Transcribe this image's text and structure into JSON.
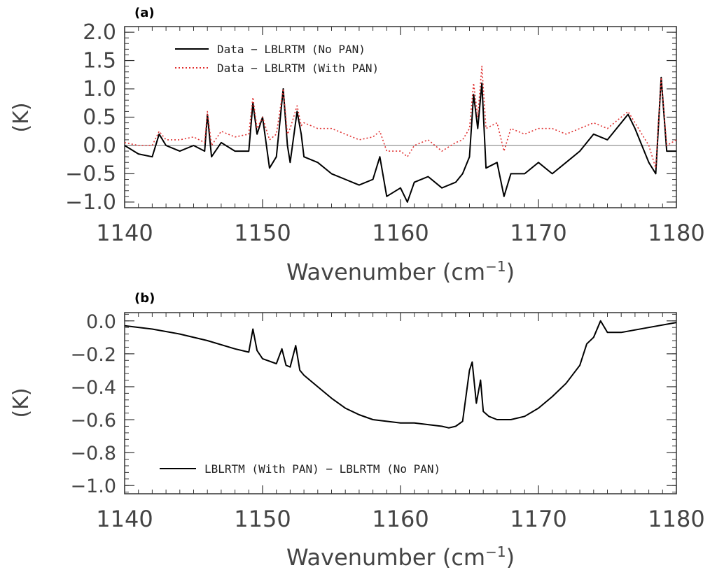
{
  "chart_data": [
    {
      "panel": "(a)",
      "type": "line",
      "xlabel": "Wavenumber (cm",
      "xlabel_sup": "−1",
      "xlabel_close": ")",
      "ylabel": "(K)",
      "xlim": [
        1140,
        1180
      ],
      "ylim": [
        -1.1,
        2.1
      ],
      "xticks": [
        1140,
        1150,
        1160,
        1170,
        1180
      ],
      "xtick_labels": [
        "1140",
        "1150",
        "1160",
        "1170",
        "1180"
      ],
      "yticks": [
        -1.0,
        -0.5,
        0.0,
        0.5,
        1.0,
        1.5,
        2.0
      ],
      "ytick_labels": [
        "−1.0",
        "−0.5",
        "0.0",
        "0.5",
        "1.0",
        "1.5",
        "2.0"
      ],
      "zero_line": true,
      "legend_position": "top-left",
      "series": [
        {
          "name": "Data − LBLRTM (No PAN)",
          "style": "solid",
          "color": "#000000",
          "x": [
            1140,
            1141,
            1142,
            1142.5,
            1143,
            1144,
            1145,
            1145.8,
            1146,
            1146.3,
            1147,
            1148,
            1149,
            1149.3,
            1149.6,
            1150,
            1150.5,
            1151,
            1151.5,
            1151.8,
            1152,
            1152.5,
            1152.8,
            1153,
            1154,
            1155,
            1156,
            1157,
            1158,
            1158.5,
            1159,
            1160,
            1160.5,
            1161,
            1162,
            1163,
            1164,
            1164.5,
            1165,
            1165.3,
            1165.6,
            1165.9,
            1166.2,
            1167,
            1167.5,
            1168,
            1169,
            1170,
            1171,
            1172,
            1173,
            1174,
            1175,
            1176,
            1176.5,
            1177,
            1178,
            1178.5,
            1178.9,
            1179.3,
            1180
          ],
          "y": [
            0.0,
            -0.15,
            -0.2,
            0.2,
            0.0,
            -0.1,
            0.0,
            -0.1,
            0.55,
            -0.2,
            0.05,
            -0.1,
            -0.1,
            0.75,
            0.2,
            0.5,
            -0.4,
            -0.2,
            1.0,
            0.0,
            -0.3,
            0.6,
            0.2,
            -0.2,
            -0.3,
            -0.5,
            -0.6,
            -0.7,
            -0.6,
            -0.2,
            -0.9,
            -0.75,
            -1.0,
            -0.65,
            -0.55,
            -0.75,
            -0.65,
            -0.5,
            -0.2,
            0.9,
            0.3,
            1.1,
            -0.4,
            -0.3,
            -0.9,
            -0.5,
            -0.5,
            -0.3,
            -0.5,
            -0.3,
            -0.1,
            0.2,
            0.1,
            0.4,
            0.55,
            0.3,
            -0.3,
            -0.5,
            1.2,
            -0.1,
            -0.1
          ]
        },
        {
          "name": "Data − LBLRTM (With PAN)",
          "style": "dotted",
          "color": "#e03030",
          "x": [
            1140,
            1141,
            1142,
            1142.5,
            1143,
            1144,
            1145,
            1145.8,
            1146,
            1146.3,
            1147,
            1148,
            1149,
            1149.3,
            1149.6,
            1150,
            1150.5,
            1151,
            1151.5,
            1151.8,
            1152,
            1152.5,
            1152.8,
            1153,
            1154,
            1155,
            1156,
            1157,
            1158,
            1158.5,
            1159,
            1160,
            1160.5,
            1161,
            1162,
            1163,
            1164,
            1164.5,
            1165,
            1165.3,
            1165.6,
            1165.9,
            1166.2,
            1167,
            1167.5,
            1168,
            1169,
            1170,
            1171,
            1172,
            1173,
            1174,
            1175,
            1176,
            1176.5,
            1177,
            1178,
            1178.5,
            1178.9,
            1179.3,
            1180
          ],
          "y": [
            0.05,
            0.0,
            0.0,
            0.25,
            0.1,
            0.1,
            0.15,
            0.05,
            0.6,
            0.0,
            0.25,
            0.15,
            0.2,
            0.85,
            0.3,
            0.5,
            0.1,
            0.2,
            1.0,
            0.2,
            0.3,
            0.7,
            0.35,
            0.4,
            0.3,
            0.3,
            0.2,
            0.1,
            0.15,
            0.25,
            -0.1,
            -0.1,
            -0.2,
            0.0,
            0.1,
            -0.1,
            0.05,
            0.1,
            0.3,
            1.1,
            0.5,
            1.4,
            0.3,
            0.4,
            -0.1,
            0.3,
            0.2,
            0.3,
            0.3,
            0.2,
            0.3,
            0.4,
            0.3,
            0.5,
            0.6,
            0.4,
            0.0,
            -0.4,
            1.2,
            0.0,
            0.1
          ]
        }
      ]
    },
    {
      "panel": "(b)",
      "type": "line",
      "xlabel": "Wavenumber (cm",
      "xlabel_sup": "−1",
      "xlabel_close": ")",
      "ylabel": "(K)",
      "xlim": [
        1140,
        1180
      ],
      "ylim": [
        -1.05,
        0.05
      ],
      "xticks": [
        1140,
        1150,
        1160,
        1170,
        1180
      ],
      "xtick_labels": [
        "1140",
        "1150",
        "1160",
        "1170",
        "1180"
      ],
      "yticks": [
        -1.0,
        -0.8,
        -0.6,
        -0.4,
        -0.2,
        0.0
      ],
      "ytick_labels": [
        "−1.0",
        "−0.8",
        "−0.6",
        "−0.4",
        "−0.2",
        "0.0"
      ],
      "legend_position": "bottom-left",
      "series": [
        {
          "name": "LBLRTM (With PAN) − LBLRTM (No PAN)",
          "style": "solid",
          "color": "#000000",
          "x": [
            1140,
            1142,
            1144,
            1146,
            1148,
            1149,
            1149.3,
            1149.6,
            1150,
            1151,
            1151.4,
            1151.7,
            1152,
            1152.4,
            1152.7,
            1153,
            1154,
            1155,
            1156,
            1157,
            1158,
            1159,
            1160,
            1161,
            1162,
            1163,
            1163.5,
            1164,
            1164.5,
            1165,
            1165.2,
            1165.5,
            1165.8,
            1166,
            1166.4,
            1167,
            1168,
            1169,
            1170,
            1171,
            1172,
            1173,
            1173.5,
            1174,
            1174.5,
            1175,
            1176,
            1178,
            1180
          ],
          "y": [
            -0.03,
            -0.05,
            -0.08,
            -0.12,
            -0.17,
            -0.19,
            -0.05,
            -0.18,
            -0.23,
            -0.26,
            -0.17,
            -0.27,
            -0.28,
            -0.15,
            -0.3,
            -0.33,
            -0.4,
            -0.47,
            -0.53,
            -0.57,
            -0.6,
            -0.61,
            -0.62,
            -0.62,
            -0.63,
            -0.64,
            -0.65,
            -0.64,
            -0.61,
            -0.3,
            -0.25,
            -0.5,
            -0.36,
            -0.55,
            -0.58,
            -0.6,
            -0.6,
            -0.58,
            -0.53,
            -0.46,
            -0.38,
            -0.27,
            -0.14,
            -0.1,
            0.0,
            -0.07,
            -0.07,
            -0.04,
            -0.01
          ]
        }
      ]
    }
  ]
}
